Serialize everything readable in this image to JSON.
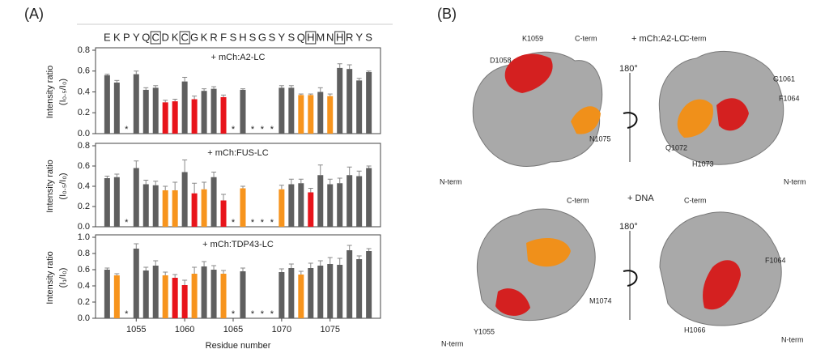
{
  "panel_a_label": "(A)",
  "sequence": [
    "E",
    "K",
    "P",
    "Y",
    "Q",
    "C",
    "D",
    "K",
    "C",
    "G",
    "K",
    "R",
    "F",
    "S",
    "H",
    "S",
    "G",
    "S",
    "Y",
    "S",
    "Q",
    "H",
    "M",
    "N",
    "H",
    "R",
    "Y",
    "S"
  ],
  "boxed_residues": [
    1057,
    1060,
    1073,
    1076
  ],
  "chart_data": [
    {
      "type": "bar",
      "title": "+ mCh:A2-LC",
      "y_label": [
        "Intensity ratio",
        "(I₀.₅/I₀)"
      ],
      "missing_label": "*",
      "x": [
        1052,
        1053,
        1054,
        1055,
        1056,
        1057,
        1058,
        1059,
        1060,
        1061,
        1062,
        1063,
        1064,
        1065,
        1066,
        1067,
        1068,
        1069,
        1070,
        1071,
        1072,
        1073,
        1074,
        1075,
        1076,
        1077,
        1078,
        1079
      ],
      "values": [
        0.56,
        0.49,
        null,
        0.57,
        0.42,
        0.44,
        0.3,
        0.31,
        0.5,
        0.33,
        0.41,
        0.43,
        0.35,
        null,
        0.42,
        null,
        null,
        null,
        0.44,
        0.44,
        0.37,
        0.37,
        0.4,
        0.36,
        0.63,
        0.62,
        0.51,
        0.59
      ],
      "errors": [
        0.01,
        0.02,
        null,
        0.03,
        0.02,
        0.02,
        0.02,
        0.02,
        0.04,
        0.03,
        0.02,
        0.02,
        0.02,
        null,
        0.01,
        null,
        null,
        null,
        0.02,
        0.02,
        0.01,
        0.01,
        0.04,
        0.02,
        0.04,
        0.04,
        0.02,
        0.01
      ],
      "colors": [
        "#5f5f5f",
        "#5f5f5f",
        null,
        "#5f5f5f",
        "#5f5f5f",
        "#5f5f5f",
        "#e8141b",
        "#e8141b",
        "#5f5f5f",
        "#e8141b",
        "#5f5f5f",
        "#5f5f5f",
        "#e8141b",
        null,
        "#5f5f5f",
        null,
        null,
        null,
        "#5f5f5f",
        "#5f5f5f",
        "#f7941d",
        "#f7941d",
        "#5f5f5f",
        "#f7941d",
        "#5f5f5f",
        "#5f5f5f",
        "#5f5f5f",
        "#5f5f5f"
      ],
      "xlim": [
        1050.8,
        1080.2
      ],
      "ylim": [
        0,
        0.8
      ],
      "yticks": [
        {
          "value": 0,
          "label": "0.0"
        },
        0.2,
        0.4,
        0.6,
        0.8
      ]
    },
    {
      "type": "bar",
      "title": "+ mCh:FUS-LC",
      "y_label": [
        "Intensity ratio",
        "(I₀.₅/I₀)"
      ],
      "missing_label": "*",
      "x": [
        1052,
        1053,
        1054,
        1055,
        1056,
        1057,
        1058,
        1059,
        1060,
        1061,
        1062,
        1063,
        1064,
        1065,
        1066,
        1067,
        1068,
        1069,
        1070,
        1071,
        1072,
        1073,
        1074,
        1075,
        1076,
        1077,
        1078,
        1079
      ],
      "values": [
        0.48,
        0.49,
        null,
        0.58,
        0.42,
        0.41,
        0.36,
        0.36,
        0.54,
        0.33,
        0.37,
        0.49,
        0.26,
        null,
        0.38,
        null,
        null,
        null,
        0.37,
        0.42,
        0.43,
        0.34,
        0.51,
        0.42,
        0.43,
        0.51,
        0.5,
        0.58
      ],
      "errors": [
        0.02,
        0.03,
        null,
        0.07,
        0.04,
        0.04,
        0.04,
        0.08,
        0.12,
        0.1,
        0.07,
        0.05,
        0.06,
        null,
        0.02,
        null,
        null,
        null,
        0.04,
        0.05,
        0.04,
        0.04,
        0.1,
        0.05,
        0.05,
        0.08,
        0.05,
        0.02
      ],
      "colors": [
        "#5f5f5f",
        "#5f5f5f",
        null,
        "#5f5f5f",
        "#5f5f5f",
        "#5f5f5f",
        "#f7941d",
        "#f7941d",
        "#5f5f5f",
        "#e8141b",
        "#f7941d",
        "#5f5f5f",
        "#e8141b",
        null,
        "#f7941d",
        null,
        null,
        null,
        "#f7941d",
        "#5f5f5f",
        "#5f5f5f",
        "#e8141b",
        "#5f5f5f",
        "#5f5f5f",
        "#5f5f5f",
        "#5f5f5f",
        "#5f5f5f",
        "#5f5f5f"
      ],
      "xlim": [
        1050.8,
        1080.2
      ],
      "ylim": [
        0,
        0.8
      ],
      "yticks": [
        {
          "value": 0,
          "label": "0.0"
        },
        0.2,
        0.4,
        0.6,
        0.8
      ]
    },
    {
      "type": "bar",
      "title": "+ mCh:TDP43-LC",
      "y_label": [
        "Intensity ratio",
        "(I₁/I₀)"
      ],
      "missing_label": "*",
      "x_label": "Residue number",
      "x": [
        1052,
        1053,
        1054,
        1055,
        1056,
        1057,
        1058,
        1059,
        1060,
        1061,
        1062,
        1063,
        1064,
        1065,
        1066,
        1067,
        1068,
        1069,
        1070,
        1071,
        1072,
        1073,
        1074,
        1075,
        1076,
        1077,
        1078,
        1079
      ],
      "values": [
        0.6,
        0.53,
        null,
        0.86,
        0.59,
        0.65,
        0.53,
        0.5,
        0.41,
        0.55,
        0.64,
        0.6,
        0.55,
        null,
        0.58,
        null,
        null,
        null,
        0.57,
        0.62,
        0.54,
        0.62,
        0.65,
        0.67,
        0.66,
        0.84,
        0.73,
        0.83
      ],
      "errors": [
        0.02,
        0.02,
        null,
        0.06,
        0.04,
        0.06,
        0.04,
        0.04,
        0.06,
        0.08,
        0.06,
        0.05,
        0.04,
        null,
        0.04,
        null,
        null,
        null,
        0.04,
        0.05,
        0.04,
        0.06,
        0.06,
        0.08,
        0.08,
        0.06,
        0.04,
        0.03
      ],
      "colors": [
        "#5f5f5f",
        "#f7941d",
        null,
        "#5f5f5f",
        "#5f5f5f",
        "#5f5f5f",
        "#f7941d",
        "#e8141b",
        "#e8141b",
        "#f7941d",
        "#5f5f5f",
        "#5f5f5f",
        "#f7941d",
        null,
        "#5f5f5f",
        null,
        null,
        null,
        "#5f5f5f",
        "#5f5f5f",
        "#f7941d",
        "#5f5f5f",
        "#5f5f5f",
        "#5f5f5f",
        "#5f5f5f",
        "#5f5f5f",
        "#5f5f5f",
        "#5f5f5f"
      ],
      "xlim": [
        1050.8,
        1080.2
      ],
      "xticks": [
        1055,
        1060,
        1065,
        1070,
        1075
      ],
      "ylim": [
        0,
        1
      ],
      "yticks": [
        {
          "value": 0,
          "label": "0.0"
        },
        0.2,
        0.4,
        0.6,
        0.8,
        {
          "value": 1,
          "label": "1.0"
        }
      ]
    }
  ],
  "panel_b": {
    "label": "(B)",
    "top": {
      "condition": "+ mCh:A2-LC",
      "rotation": "180°",
      "left": {
        "c_term": "C-term",
        "n_term": "N-term",
        "residues": [
          "K1059",
          "D1058",
          "N1075"
        ]
      },
      "right": {
        "c_term": "C-term",
        "n_term": "N-term",
        "residues": [
          "G1061",
          "F1064",
          "Q1072",
          "H1073"
        ]
      }
    },
    "bottom": {
      "condition": "+ DNA",
      "rotation": "180°",
      "left": {
        "c_term": "C-term",
        "n_term": "N-term",
        "residues": [
          "M1074",
          "Y1055"
        ]
      },
      "right": {
        "c_term": "C-term",
        "n_term": "N-term",
        "residues": [
          "F1064",
          "H1066"
        ]
      }
    }
  }
}
